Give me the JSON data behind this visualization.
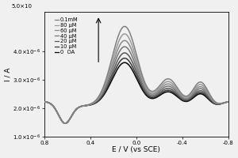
{
  "xlabel": "E / V (vs SCE)",
  "ylabel": "I / A",
  "xlim": [
    0.8,
    -0.8
  ],
  "ylim": [
    1e-06,
    5.4e-06
  ],
  "yticks": [
    1e-06,
    2e-06,
    3e-06,
    4e-06
  ],
  "xticks": [
    0.8,
    0.4,
    0.0,
    -0.4,
    -0.8
  ],
  "xtick_labels": [
    "0.8",
    "0.4",
    "0.0",
    "-0.4",
    "-0.8"
  ],
  "legend_labels": [
    "0.1mM",
    "80 μM",
    "60 μM",
    "40 μM",
    "20 μM",
    "10 μM",
    "0  OA"
  ],
  "background_color": "#f0f0f0",
  "n_curves": 7,
  "gray_shades": [
    0.0,
    0.22,
    0.35,
    0.46,
    0.54,
    0.6,
    0.5
  ],
  "scales": [
    1.0,
    1.1,
    1.22,
    1.36,
    1.5,
    1.65,
    1.82
  ]
}
